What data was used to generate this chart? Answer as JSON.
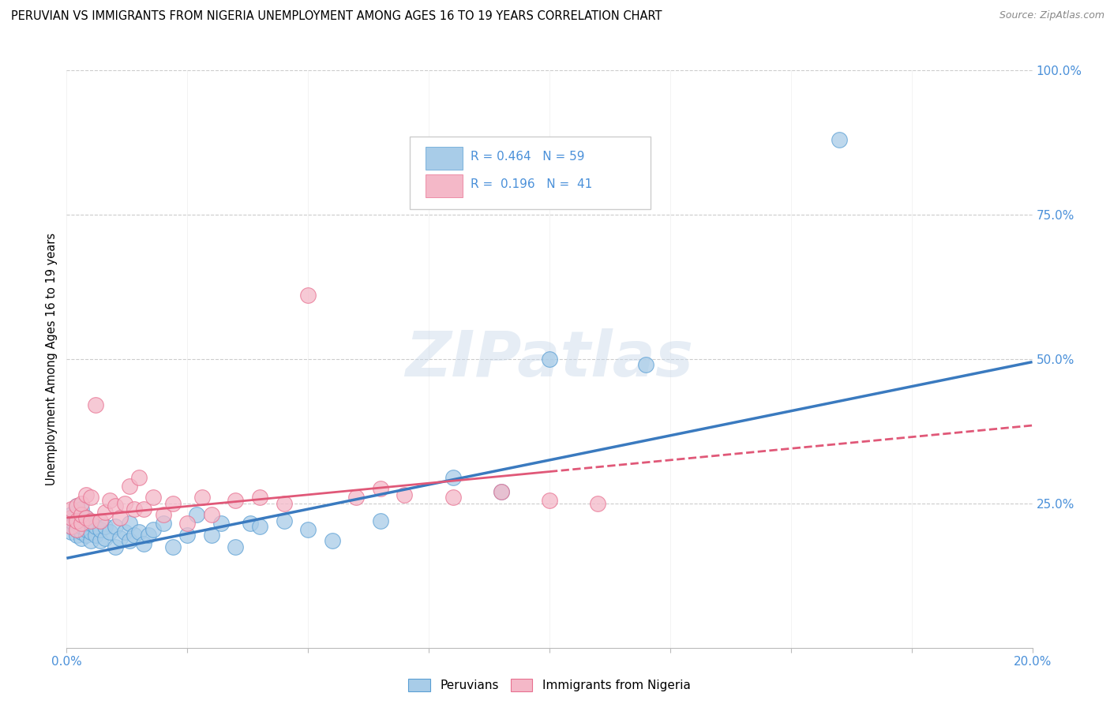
{
  "title": "PERUVIAN VS IMMIGRANTS FROM NIGERIA UNEMPLOYMENT AMONG AGES 16 TO 19 YEARS CORRELATION CHART",
  "source": "Source: ZipAtlas.com",
  "ylabel": "Unemployment Among Ages 16 to 19 years",
  "xlim": [
    0,
    0.2
  ],
  "ylim": [
    0,
    1.0
  ],
  "blue_color": "#a8cce8",
  "pink_color": "#f4b8c8",
  "blue_edge_color": "#5a9fd4",
  "pink_edge_color": "#e87090",
  "blue_line_color": "#3a7abf",
  "pink_line_color": "#e05878",
  "tick_color": "#4a90d9",
  "legend_text_color": "#4a90d9",
  "legend_blue_label": "R = 0.464   N = 59",
  "legend_pink_label": "R =  0.196   N =  41",
  "legend_label_blue": "Peruvians",
  "legend_label_pink": "Immigrants from Nigeria",
  "watermark": "ZIPatlas",
  "blue_line_x": [
    0.0,
    0.2
  ],
  "blue_line_y": [
    0.155,
    0.495
  ],
  "pink_line_x": [
    0.0,
    0.2
  ],
  "pink_line_y": [
    0.225,
    0.385
  ],
  "pink_line_solid_end": 0.1,
  "blue_scatter_x": [
    0.001,
    0.001,
    0.001,
    0.001,
    0.002,
    0.002,
    0.002,
    0.002,
    0.002,
    0.002,
    0.003,
    0.003,
    0.003,
    0.003,
    0.003,
    0.003,
    0.004,
    0.004,
    0.004,
    0.004,
    0.005,
    0.005,
    0.005,
    0.006,
    0.006,
    0.007,
    0.007,
    0.008,
    0.008,
    0.009,
    0.01,
    0.01,
    0.011,
    0.012,
    0.013,
    0.013,
    0.014,
    0.015,
    0.016,
    0.017,
    0.018,
    0.02,
    0.022,
    0.025,
    0.027,
    0.03,
    0.032,
    0.035,
    0.038,
    0.04,
    0.045,
    0.05,
    0.055,
    0.065,
    0.08,
    0.09,
    0.1,
    0.12,
    0.16
  ],
  "blue_scatter_y": [
    0.2,
    0.21,
    0.22,
    0.23,
    0.195,
    0.205,
    0.215,
    0.225,
    0.235,
    0.245,
    0.19,
    0.2,
    0.21,
    0.22,
    0.23,
    0.24,
    0.195,
    0.205,
    0.215,
    0.225,
    0.185,
    0.2,
    0.215,
    0.195,
    0.21,
    0.185,
    0.205,
    0.19,
    0.21,
    0.2,
    0.175,
    0.21,
    0.19,
    0.2,
    0.185,
    0.215,
    0.195,
    0.2,
    0.18,
    0.195,
    0.205,
    0.215,
    0.175,
    0.195,
    0.23,
    0.195,
    0.215,
    0.175,
    0.215,
    0.21,
    0.22,
    0.205,
    0.185,
    0.22,
    0.295,
    0.27,
    0.5,
    0.49,
    0.88
  ],
  "pink_scatter_x": [
    0.001,
    0.001,
    0.001,
    0.002,
    0.002,
    0.002,
    0.003,
    0.003,
    0.003,
    0.004,
    0.004,
    0.005,
    0.005,
    0.006,
    0.007,
    0.008,
    0.009,
    0.01,
    0.011,
    0.012,
    0.013,
    0.014,
    0.015,
    0.016,
    0.018,
    0.02,
    0.022,
    0.025,
    0.028,
    0.03,
    0.035,
    0.04,
    0.045,
    0.05,
    0.06,
    0.065,
    0.07,
    0.08,
    0.09,
    0.1,
    0.11
  ],
  "pink_scatter_y": [
    0.21,
    0.225,
    0.24,
    0.205,
    0.22,
    0.245,
    0.215,
    0.23,
    0.25,
    0.225,
    0.265,
    0.22,
    0.26,
    0.42,
    0.22,
    0.235,
    0.255,
    0.245,
    0.225,
    0.25,
    0.28,
    0.24,
    0.295,
    0.24,
    0.26,
    0.23,
    0.25,
    0.215,
    0.26,
    0.23,
    0.255,
    0.26,
    0.25,
    0.61,
    0.26,
    0.275,
    0.265,
    0.26,
    0.27,
    0.255,
    0.25
  ]
}
